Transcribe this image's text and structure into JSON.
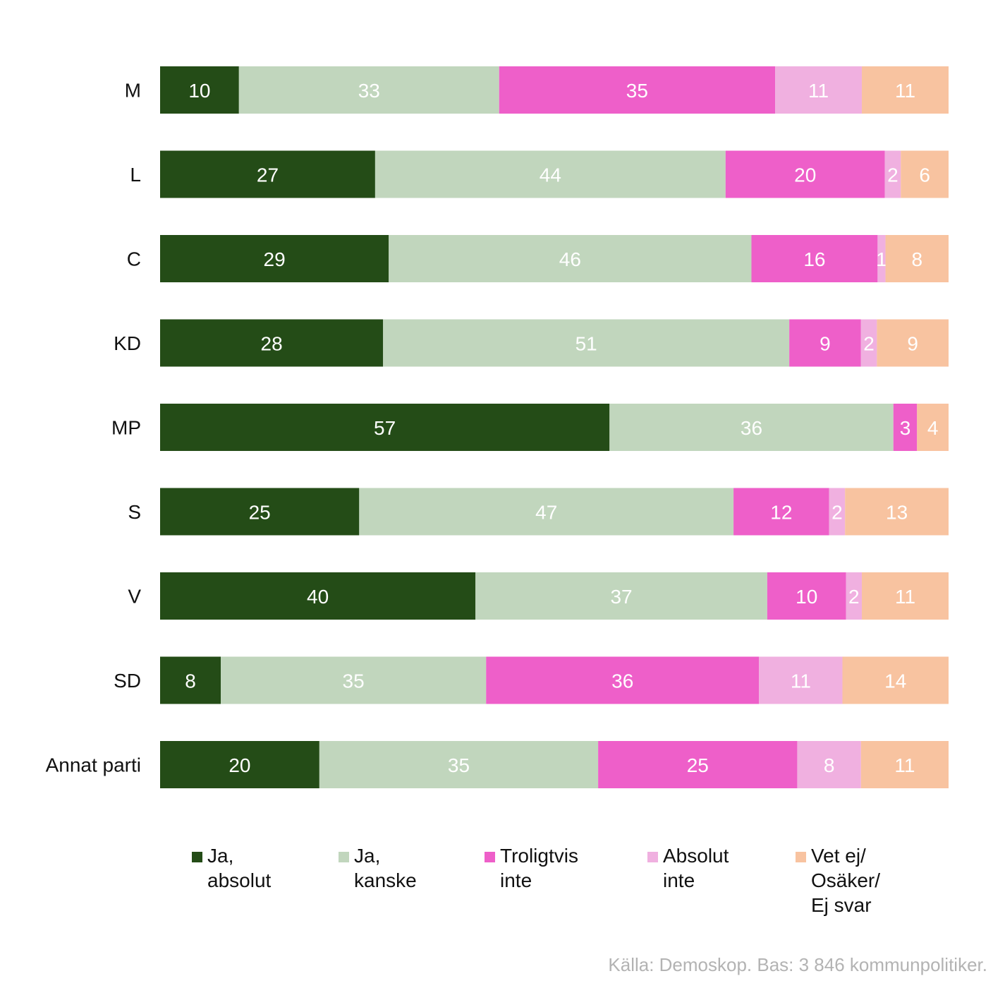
{
  "chart_data": {
    "type": "bar",
    "orientation": "horizontal",
    "stacked": true,
    "categories": [
      "M",
      "L",
      "C",
      "KD",
      "MP",
      "S",
      "V",
      "SD",
      "Annat parti"
    ],
    "series": [
      {
        "name": "Ja,\nabsolut",
        "color": "#244c17",
        "label_color": "#ffffff",
        "values": [
          10,
          27,
          29,
          28,
          57,
          25,
          40,
          8,
          20
        ]
      },
      {
        "name": "Ja,\nkanske",
        "color": "#c1d6bd",
        "label_color": "#ffffff",
        "values": [
          33,
          44,
          46,
          51,
          36,
          47,
          37,
          35,
          35
        ]
      },
      {
        "name": "Troligtvis\ninte",
        "color": "#ee5fc9",
        "label_color": "#ffffff",
        "values": [
          35,
          20,
          16,
          9,
          3,
          12,
          10,
          36,
          25
        ]
      },
      {
        "name": "Absolut\ninte",
        "color": "#f0b0e0",
        "label_color": "#ffffff",
        "values": [
          11,
          2,
          1,
          2,
          0,
          2,
          2,
          11,
          8
        ]
      },
      {
        "name": "Vet ej/\nOsäker/\nEj svar",
        "color": "#f8c3a0",
        "label_color": "#ffffff",
        "values": [
          11,
          6,
          8,
          9,
          4,
          13,
          11,
          14,
          11
        ]
      }
    ],
    "legend_position": "bottom",
    "grid": false
  },
  "source": "Källa: Demoskop. Bas: 3 846 kommunpolitiker."
}
